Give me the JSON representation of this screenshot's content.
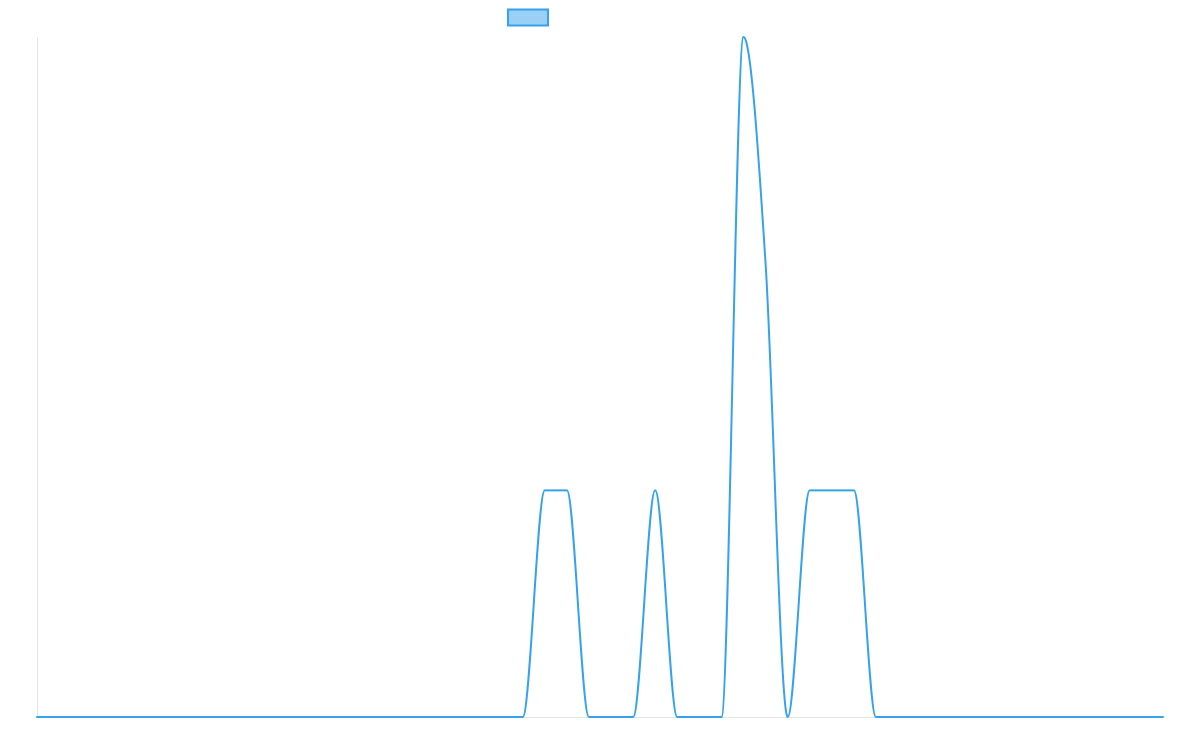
{
  "chart_data": {
    "type": "line",
    "title": "",
    "xlabel": "",
    "ylabel": "",
    "legend": {
      "position": "top-center",
      "entries": [
        {
          "name": ""
        }
      ]
    },
    "grid": false,
    "xlim": [
      0,
      51
    ],
    "ylim": [
      0,
      3
    ],
    "series": [
      {
        "name": "",
        "color": "#36a2eb",
        "fill": "#9ad0f5",
        "tension": 0.4,
        "x": [
          0,
          22,
          23,
          24,
          25,
          26,
          27,
          28,
          29,
          30,
          31,
          32,
          33,
          34,
          35,
          36,
          37,
          38,
          39,
          40,
          51
        ],
        "values": [
          0,
          0,
          1,
          1,
          0,
          0,
          0,
          1,
          0,
          0,
          0,
          3,
          2,
          0,
          1,
          1,
          1,
          0,
          0,
          0,
          0
        ]
      }
    ]
  }
}
